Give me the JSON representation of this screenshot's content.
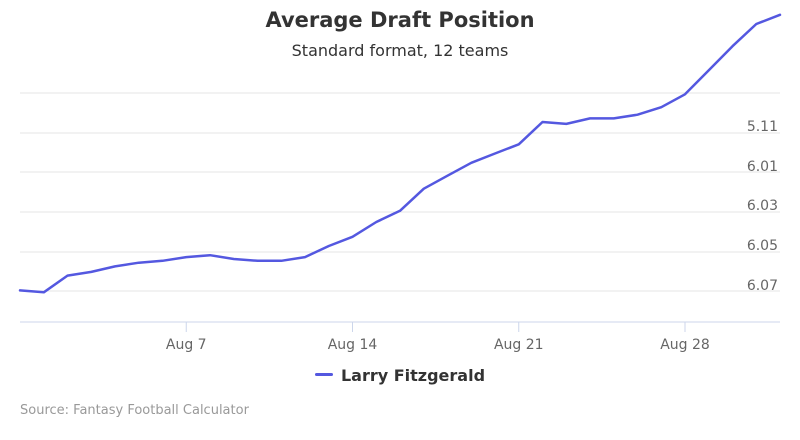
{
  "chart_data": {
    "type": "line",
    "title": "Average Draft Position",
    "subtitle": "Standard format, 12 teams",
    "x_ticks": [
      "Aug 7",
      "Aug 14",
      "Aug 21",
      "Aug 28"
    ],
    "y_ticks": [
      "5.11",
      "6.01",
      "6.03",
      "6.05",
      "6.07"
    ],
    "y_reversed": true,
    "grid": true,
    "legend_position": "bottom-center",
    "series": [
      {
        "name": "Larry Fitzgerald",
        "color": "#5458e0",
        "x": [
          "Jul 31",
          "Aug 1",
          "Aug 2",
          "Aug 3",
          "Aug 4",
          "Aug 5",
          "Aug 6",
          "Aug 7",
          "Aug 8",
          "Aug 9",
          "Aug 10",
          "Aug 11",
          "Aug 12",
          "Aug 13",
          "Aug 14",
          "Aug 15",
          "Aug 16",
          "Aug 17",
          "Aug 18",
          "Aug 19",
          "Aug 20",
          "Aug 21",
          "Aug 22",
          "Aug 23",
          "Aug 24",
          "Aug 25",
          "Aug 26",
          "Aug 27",
          "Aug 28",
          "Aug 29",
          "Aug 30",
          "Aug 31",
          "Sep 1"
        ],
        "y": [
          6.074,
          6.075,
          6.066,
          6.064,
          6.061,
          6.059,
          6.058,
          6.056,
          6.055,
          6.057,
          6.058,
          6.058,
          6.056,
          6.05,
          6.045,
          6.037,
          6.031,
          6.019,
          6.012,
          6.005,
          6.0,
          5.995,
          5.983,
          5.984,
          5.981,
          5.981,
          5.979,
          5.975,
          5.968,
          5.955,
          5.942,
          5.93,
          5.925
        ]
      }
    ]
  },
  "source": "Source: Fantasy Football Calculator"
}
